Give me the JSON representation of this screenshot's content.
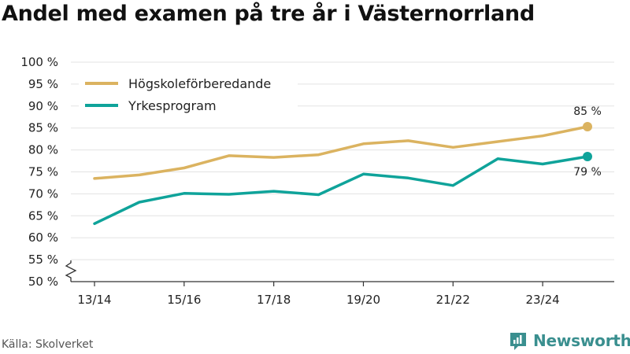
{
  "title": "Andel med examen på tre år i Västernorrland",
  "source": "Källa: Skolverket",
  "brand": "Newsworthy",
  "colors": {
    "series1": "#dbb360",
    "series2": "#0fa39a",
    "brand": "#3a8f8f"
  },
  "chart_data": {
    "type": "line",
    "title": "Andel med examen på tre år i Västernorrland",
    "xlabel": "",
    "ylabel": "",
    "x": [
      "13/14",
      "14/15",
      "15/16",
      "16/17",
      "17/18",
      "18/19",
      "19/20",
      "20/21",
      "21/22",
      "22/23",
      "23/24",
      "24/25"
    ],
    "xtick_labels": [
      "13/14",
      "15/16",
      "17/18",
      "19/20",
      "21/22",
      "23/24"
    ],
    "ylim": [
      50,
      100
    ],
    "yticks": [
      50,
      55,
      60,
      65,
      70,
      75,
      80,
      85,
      90,
      95,
      100
    ],
    "ytick_labels": [
      "50 %",
      "55 %",
      "60 %",
      "65 %",
      "70 %",
      "75 %",
      "80 %",
      "85 %",
      "90 %",
      "95 %",
      "100 %"
    ],
    "y_axis_break": true,
    "grid": true,
    "legend": "top-left",
    "series": [
      {
        "name": "Högskoleförberedande",
        "color": "#dbb360",
        "values": [
          73.5,
          74.3,
          75.9,
          78.7,
          78.3,
          78.9,
          81.4,
          82.1,
          80.6,
          81.9,
          83.2,
          85.3
        ],
        "end_label": "85 %"
      },
      {
        "name": "Yrkesprogram",
        "color": "#0fa39a",
        "values": [
          63.2,
          68.1,
          70.1,
          69.9,
          70.6,
          69.8,
          74.5,
          73.6,
          71.9,
          78.0,
          76.8,
          78.5
        ],
        "end_label": "79 %"
      }
    ]
  }
}
